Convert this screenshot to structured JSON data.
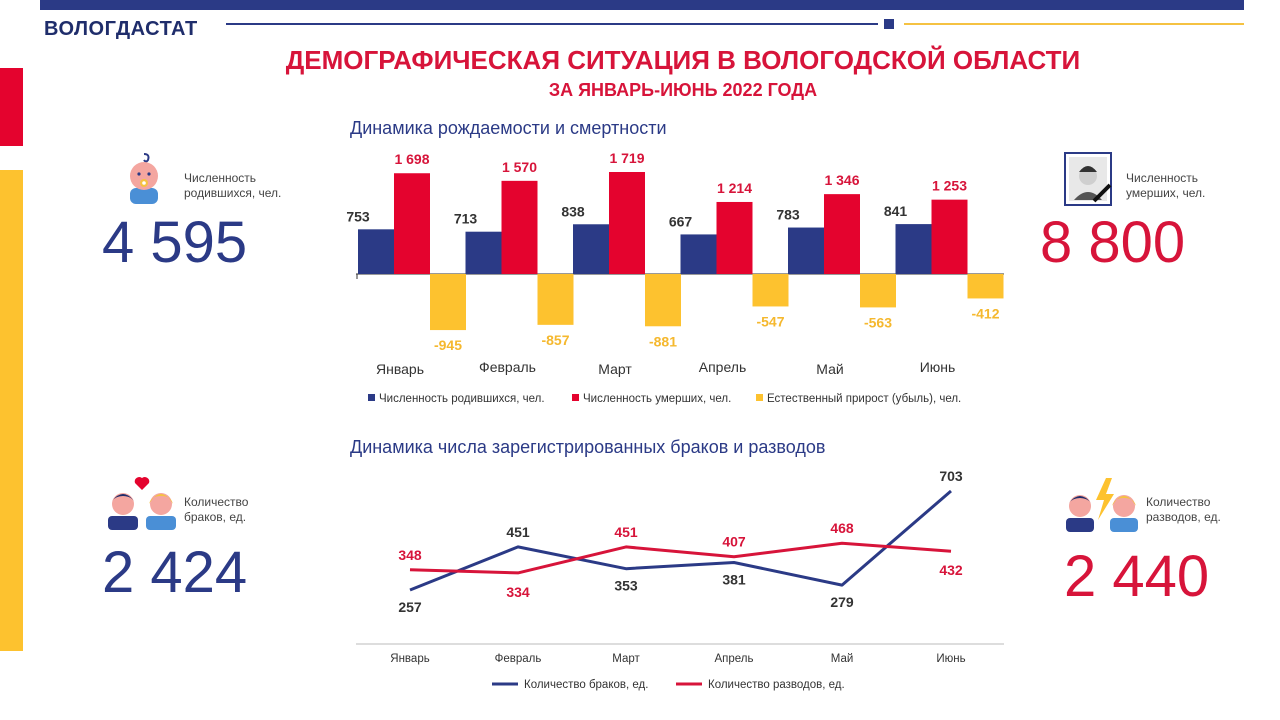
{
  "header": {
    "brand": "ВОЛОГДАСТАТ",
    "title": "ДЕМОГРАФИЧЕСКАЯ СИТУАЦИЯ В ВОЛОГОДСКОЙ ОБЛАСТИ",
    "subtitle": "ЗА ЯНВАРЬ-ИЮНЬ 2022 ГОДА"
  },
  "colors": {
    "navy": "#2b3a86",
    "red": "#d7143a",
    "yellow": "#fdc22f"
  },
  "kpis": {
    "births": {
      "label_line1": "Численность",
      "label_line2": "родившихся, чел.",
      "value": "4 595",
      "icon": "baby-icon"
    },
    "deaths": {
      "label_line1": "Численность",
      "label_line2": "умерших, чел.",
      "value": "8 800",
      "icon": "mourning-portrait-icon"
    },
    "marriages": {
      "label_line1": "Количество",
      "label_line2": "браков, ед.",
      "value": "2 424",
      "icon": "couple-heart-icon"
    },
    "divorces": {
      "label_line1": "Количество",
      "label_line2": "разводов, ед.",
      "value": "2 440",
      "icon": "couple-lightning-icon"
    }
  },
  "chart_data": [
    {
      "type": "bar",
      "title": "Динамика  рождаемости и смертности",
      "categories": [
        "Январь",
        "Февраль",
        "Март",
        "Апрель",
        "Май",
        "Июнь"
      ],
      "series": [
        {
          "name": "Численность родившихся, чел.",
          "values": [
            753,
            713,
            838,
            667,
            783,
            841
          ],
          "labels": [
            "753",
            "713",
            "838",
            "667",
            "783",
            "841"
          ],
          "color": "#2b3a86"
        },
        {
          "name": "Численность умерших, чел.",
          "values": [
            1698,
            1570,
            1719,
            1214,
            1346,
            1253
          ],
          "labels": [
            "1 698",
            "1 570",
            "1 719",
            "1 214",
            "1 346",
            "1 253"
          ],
          "color": "#e4032e"
        },
        {
          "name": "Естественный прирост (убыль), чел.",
          "values": [
            -945,
            -857,
            -881,
            -547,
            -563,
            -412
          ],
          "labels": [
            "-945",
            "-857",
            "-881",
            "-547",
            "-563",
            "-412"
          ],
          "color": "#fdc22f"
        }
      ],
      "legend": "bottom",
      "grid": false
    },
    {
      "type": "line",
      "title": "Динамика  числа зарегистрированных  браков и разводов",
      "categories": [
        "Январь",
        "Февраль",
        "Март",
        "Апрель",
        "Май",
        "Июнь"
      ],
      "series": [
        {
          "name": "Количество браков, ед.",
          "values": [
            257,
            451,
            353,
            381,
            279,
            703
          ],
          "labels": [
            "257",
            "451",
            "353",
            "381",
            "279",
            "703"
          ],
          "color": "#2b3a86"
        },
        {
          "name": "Количество разводов, ед.",
          "values": [
            348,
            334,
            451,
            407,
            468,
            432
          ],
          "labels": [
            "348",
            "334",
            "451",
            "407",
            "468",
            "432"
          ],
          "color": "#d7143a"
        }
      ],
      "legend": "bottom",
      "grid": false
    }
  ]
}
